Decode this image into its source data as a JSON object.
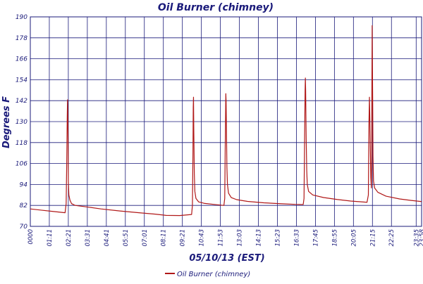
{
  "chart_data": {
    "type": "line",
    "title": "Oil Burner (chimney)",
    "xlabel": "05/10/13 (EST)",
    "ylabel": "Degrees F",
    "ylim": [
      70,
      190
    ],
    "yticks": [
      70,
      82,
      94,
      106,
      118,
      130,
      142,
      154,
      166,
      178,
      190
    ],
    "x_range_minutes": [
      0,
      1441
    ],
    "xticks": [
      {
        "t": 0,
        "label": "0000"
      },
      {
        "t": 70,
        "label": "01:11"
      },
      {
        "t": 140,
        "label": "02:21"
      },
      {
        "t": 210,
        "label": "03:31"
      },
      {
        "t": 280,
        "label": "04:41"
      },
      {
        "t": 350,
        "label": "05:51"
      },
      {
        "t": 420,
        "label": "07:01"
      },
      {
        "t": 490,
        "label": "08:11"
      },
      {
        "t": 560,
        "label": "09:21"
      },
      {
        "t": 630,
        "label": "10:43"
      },
      {
        "t": 700,
        "label": "11:53"
      },
      {
        "t": 770,
        "label": "13:03"
      },
      {
        "t": 840,
        "label": "14:13"
      },
      {
        "t": 910,
        "label": "15:23"
      },
      {
        "t": 980,
        "label": "16:33"
      },
      {
        "t": 1050,
        "label": "17:45"
      },
      {
        "t": 1120,
        "label": "18:55"
      },
      {
        "t": 1190,
        "label": "20:05"
      },
      {
        "t": 1260,
        "label": "21:15"
      },
      {
        "t": 1330,
        "label": "22:25"
      },
      {
        "t": 1421,
        "label": "23:35"
      },
      {
        "t": 1441,
        "label": "23:58"
      }
    ],
    "grid": true,
    "legend": "bottom-center",
    "series": [
      {
        "name": "Oil Burner (chimney)",
        "color": "#b01818",
        "points": [
          [
            0,
            80.0
          ],
          [
            40,
            79.3
          ],
          [
            80,
            78.6
          ],
          [
            128,
            77.8
          ],
          [
            132,
            83
          ],
          [
            134,
            105
          ],
          [
            136,
            133
          ],
          [
            137,
            142.5
          ],
          [
            138,
            135
          ],
          [
            139,
            120
          ],
          [
            140,
            96
          ],
          [
            142,
            88
          ],
          [
            146,
            85
          ],
          [
            152,
            83
          ],
          [
            165,
            82.0
          ],
          [
            200,
            81.3
          ],
          [
            260,
            80.0
          ],
          [
            330,
            78.8
          ],
          [
            400,
            77.8
          ],
          [
            460,
            77.0
          ],
          [
            500,
            76.3
          ],
          [
            550,
            76.2
          ],
          [
            594,
            76.8
          ],
          [
            597,
            82
          ],
          [
            599,
            112
          ],
          [
            600,
            138
          ],
          [
            601,
            144
          ],
          [
            602,
            126
          ],
          [
            604,
            100
          ],
          [
            606,
            90
          ],
          [
            610,
            86
          ],
          [
            620,
            84
          ],
          [
            640,
            83.2
          ],
          [
            680,
            82.5
          ],
          [
            713,
            82.0
          ],
          [
            716,
            86
          ],
          [
            718,
            118
          ],
          [
            720,
            146
          ],
          [
            721,
            142
          ],
          [
            722,
            130
          ],
          [
            724,
            104
          ],
          [
            726,
            94
          ],
          [
            730,
            89
          ],
          [
            740,
            86.5
          ],
          [
            760,
            85.3
          ],
          [
            800,
            84.3
          ],
          [
            860,
            83.5
          ],
          [
            920,
            83.0
          ],
          [
            975,
            82.6
          ],
          [
            1005,
            82.5
          ],
          [
            1008,
            86
          ],
          [
            1010,
            118
          ],
          [
            1012,
            148
          ],
          [
            1013,
            155
          ],
          [
            1014,
            148
          ],
          [
            1016,
            120
          ],
          [
            1018,
            102
          ],
          [
            1020,
            94
          ],
          [
            1025,
            90
          ],
          [
            1040,
            88
          ],
          [
            1080,
            86.5
          ],
          [
            1130,
            85.4
          ],
          [
            1180,
            84.5
          ],
          [
            1240,
            83.8
          ],
          [
            1245,
            88
          ],
          [
            1247,
            128
          ],
          [
            1249,
            144
          ],
          [
            1250,
            135
          ],
          [
            1252,
            116
          ],
          [
            1254,
            98
          ],
          [
            1256,
            92
          ],
          [
            1257,
            108
          ],
          [
            1258,
            150
          ],
          [
            1259,
            185
          ],
          [
            1260,
            160
          ],
          [
            1261,
            140
          ],
          [
            1262,
            110
          ],
          [
            1264,
            96
          ],
          [
            1268,
            92
          ],
          [
            1280,
            89.5
          ],
          [
            1310,
            87.3
          ],
          [
            1360,
            85.7
          ],
          [
            1400,
            84.9
          ],
          [
            1441,
            84.2
          ]
        ]
      }
    ]
  }
}
